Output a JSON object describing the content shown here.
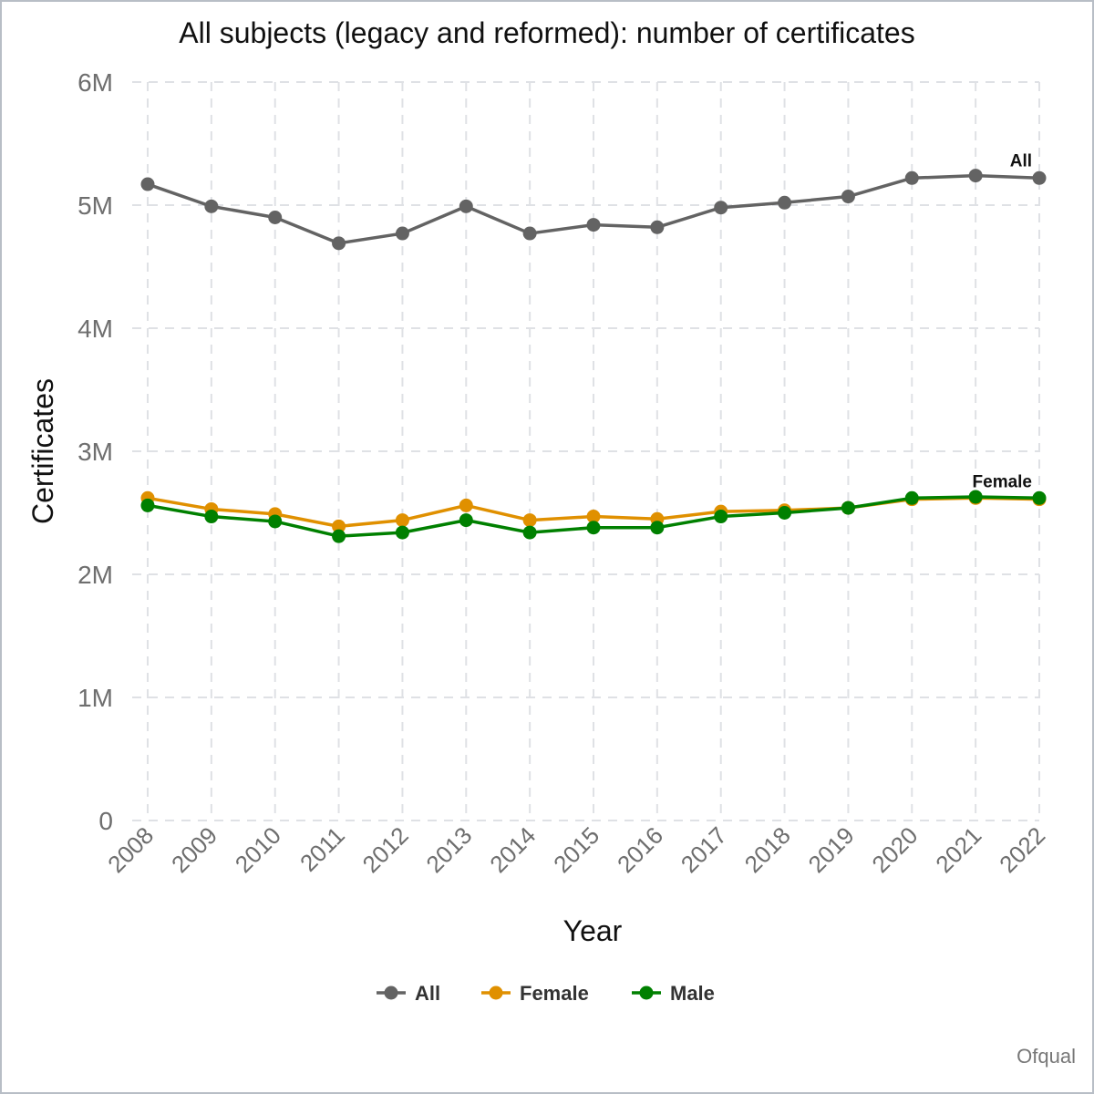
{
  "chart_data": {
    "type": "line",
    "title": "All subjects (legacy and reformed): number of certificates",
    "xlabel": "Year",
    "ylabel": "Certificates",
    "x": [
      2008,
      2009,
      2010,
      2011,
      2012,
      2013,
      2014,
      2015,
      2016,
      2017,
      2018,
      2019,
      2020,
      2021,
      2022
    ],
    "ylim": [
      0,
      6000000
    ],
    "y_ticks": [
      0,
      1000000,
      2000000,
      3000000,
      4000000,
      5000000,
      6000000
    ],
    "y_tick_labels": [
      "0",
      "1M",
      "2M",
      "3M",
      "4M",
      "5M",
      "6M"
    ],
    "grid": true,
    "legend_position": "bottom",
    "series": [
      {
        "name": "All",
        "color": "#636363",
        "values": [
          5170000,
          4990000,
          4900000,
          4690000,
          4770000,
          4990000,
          4770000,
          4840000,
          4820000,
          4980000,
          5020000,
          5070000,
          5220000,
          5240000,
          5220000
        ]
      },
      {
        "name": "Female",
        "color": "#e09000",
        "values": [
          2620000,
          2530000,
          2490000,
          2390000,
          2440000,
          2560000,
          2440000,
          2470000,
          2450000,
          2510000,
          2520000,
          2540000,
          2610000,
          2620000,
          2610000
        ]
      },
      {
        "name": "Male",
        "color": "#008000",
        "values": [
          2560000,
          2470000,
          2430000,
          2310000,
          2340000,
          2440000,
          2340000,
          2380000,
          2380000,
          2470000,
          2500000,
          2540000,
          2620000,
          2630000,
          2620000
        ]
      }
    ],
    "annotations": [
      {
        "text": "All",
        "series": "All"
      },
      {
        "text": "Female",
        "series": "Female"
      }
    ],
    "caption": "Ofqual"
  }
}
